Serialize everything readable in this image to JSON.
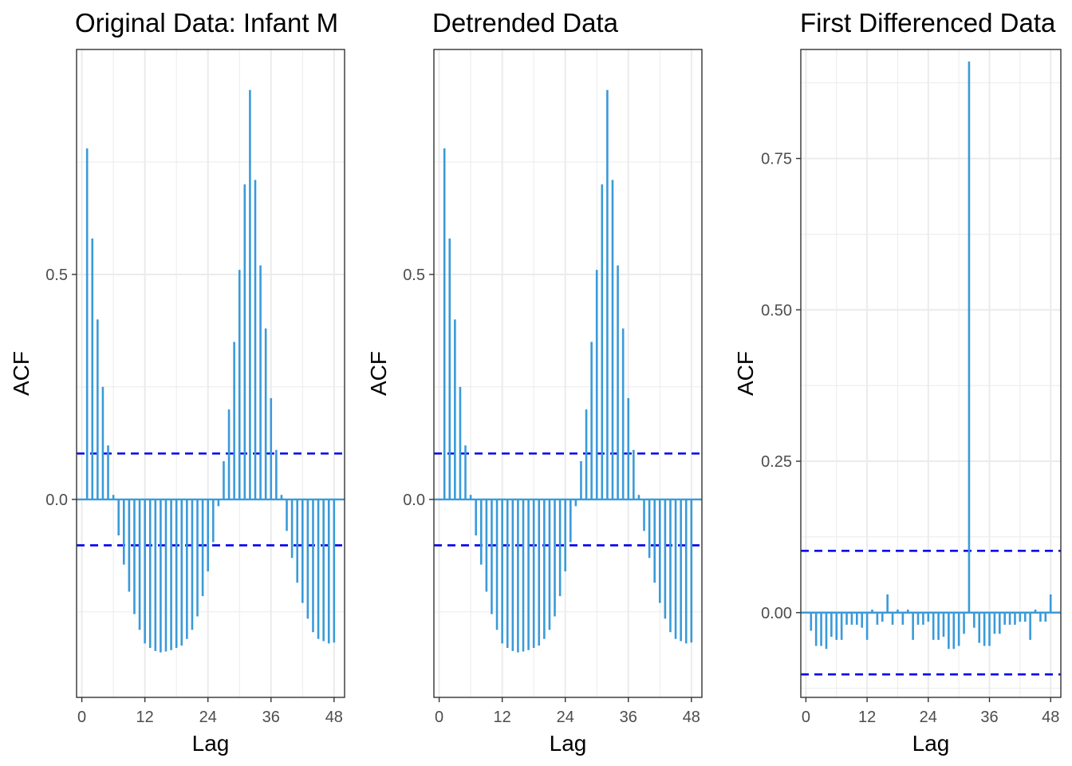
{
  "chart_data": [
    {
      "type": "bar",
      "title": "Original Data: Infant M",
      "xlabel": "Lag",
      "ylabel": "ACF",
      "xlim": [
        -1,
        50
      ],
      "ylim": [
        -0.44,
        1.0
      ],
      "x_ticks": [
        0,
        12,
        24,
        36,
        48
      ],
      "y_ticks": [
        0,
        0.5
      ],
      "y_tick_labels": [
        "0.0",
        "0.5"
      ],
      "conf_limit": 0.102,
      "bar_color": "#3a9ad9",
      "conf_color": "#0000ee",
      "grid": true,
      "lags": [
        1,
        2,
        3,
        4,
        5,
        6,
        7,
        8,
        9,
        10,
        11,
        12,
        13,
        14,
        15,
        16,
        17,
        18,
        19,
        20,
        21,
        22,
        23,
        24,
        25,
        26,
        27,
        28,
        29,
        30,
        31,
        32,
        33,
        34,
        35,
        36,
        37,
        38,
        39,
        40,
        41,
        42,
        43,
        44,
        45,
        46,
        47,
        48
      ],
      "values": [
        0.78,
        0.58,
        0.4,
        0.25,
        0.12,
        0.01,
        -0.08,
        -0.145,
        -0.205,
        -0.255,
        -0.29,
        -0.32,
        -0.33,
        -0.337,
        -0.34,
        -0.338,
        -0.335,
        -0.33,
        -0.325,
        -0.31,
        -0.29,
        -0.26,
        -0.215,
        -0.16,
        -0.095,
        -0.015,
        0.085,
        0.2,
        0.35,
        0.51,
        0.7,
        0.91,
        0.71,
        0.52,
        0.38,
        0.225,
        0.11,
        0.01,
        -0.07,
        -0.13,
        -0.185,
        -0.23,
        -0.265,
        -0.295,
        -0.31,
        -0.315,
        -0.32,
        -0.318
      ]
    },
    {
      "type": "bar",
      "title": "Detrended Data",
      "xlabel": "Lag",
      "ylabel": "ACF",
      "xlim": [
        -1,
        50
      ],
      "ylim": [
        -0.44,
        1.0
      ],
      "x_ticks": [
        0,
        12,
        24,
        36,
        48
      ],
      "y_ticks": [
        0,
        0.5
      ],
      "y_tick_labels": [
        "0.0",
        "0.5"
      ],
      "conf_limit": 0.102,
      "bar_color": "#3a9ad9",
      "conf_color": "#0000ee",
      "grid": true,
      "lags": [
        1,
        2,
        3,
        4,
        5,
        6,
        7,
        8,
        9,
        10,
        11,
        12,
        13,
        14,
        15,
        16,
        17,
        18,
        19,
        20,
        21,
        22,
        23,
        24,
        25,
        26,
        27,
        28,
        29,
        30,
        31,
        32,
        33,
        34,
        35,
        36,
        37,
        38,
        39,
        40,
        41,
        42,
        43,
        44,
        45,
        46,
        47,
        48
      ],
      "values": [
        0.78,
        0.58,
        0.4,
        0.25,
        0.12,
        0.01,
        -0.08,
        -0.145,
        -0.205,
        -0.255,
        -0.29,
        -0.32,
        -0.33,
        -0.337,
        -0.34,
        -0.338,
        -0.335,
        -0.33,
        -0.325,
        -0.31,
        -0.29,
        -0.26,
        -0.215,
        -0.16,
        -0.095,
        -0.015,
        0.085,
        0.2,
        0.35,
        0.51,
        0.7,
        0.91,
        0.71,
        0.52,
        0.38,
        0.225,
        0.11,
        0.01,
        -0.07,
        -0.13,
        -0.185,
        -0.23,
        -0.265,
        -0.295,
        -0.31,
        -0.315,
        -0.32,
        -0.318
      ]
    },
    {
      "type": "bar",
      "title": "First Differenced Data",
      "xlabel": "Lag",
      "ylabel": "ACF",
      "xlim": [
        -1,
        50
      ],
      "ylim": [
        -0.14,
        0.93
      ],
      "x_ticks": [
        0,
        12,
        24,
        36,
        48
      ],
      "y_ticks": [
        0,
        0.25,
        0.5,
        0.75
      ],
      "y_tick_labels": [
        "0.00",
        "0.25",
        "0.50",
        "0.75"
      ],
      "conf_limit": 0.102,
      "bar_color": "#3a9ad9",
      "conf_color": "#0000ee",
      "grid": true,
      "lags": [
        1,
        2,
        3,
        4,
        5,
        6,
        7,
        8,
        9,
        10,
        11,
        12,
        13,
        14,
        15,
        16,
        17,
        18,
        19,
        20,
        21,
        22,
        23,
        24,
        25,
        26,
        27,
        28,
        29,
        30,
        31,
        32,
        33,
        34,
        35,
        36,
        37,
        38,
        39,
        40,
        41,
        42,
        43,
        44,
        45,
        46,
        47,
        48
      ],
      "values": [
        -0.03,
        -0.055,
        -0.055,
        -0.06,
        -0.04,
        -0.045,
        -0.045,
        -0.02,
        -0.02,
        -0.02,
        -0.025,
        -0.045,
        0.005,
        -0.02,
        -0.015,
        0.03,
        -0.02,
        0.005,
        -0.02,
        0.005,
        -0.045,
        -0.02,
        -0.02,
        -0.015,
        -0.045,
        -0.045,
        -0.04,
        -0.06,
        -0.06,
        -0.055,
        -0.035,
        0.91,
        -0.025,
        -0.05,
        -0.055,
        -0.055,
        -0.035,
        -0.035,
        -0.02,
        -0.02,
        -0.02,
        -0.015,
        -0.015,
        -0.045,
        0.005,
        -0.015,
        -0.015,
        0.03
      ]
    }
  ]
}
